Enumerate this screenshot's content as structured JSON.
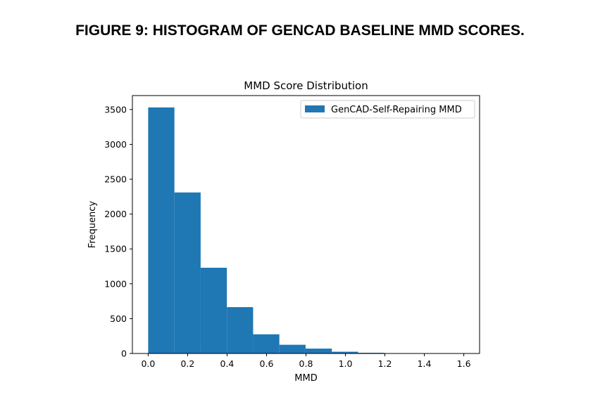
{
  "figure_caption": "FIGURE 9: HISTOGRAM OF GENCAD BASELINE MMD SCORES.",
  "chart_data": {
    "type": "bar",
    "title": "MMD Score Distribution",
    "xlabel": "MMD",
    "ylabel": "Frequency",
    "xlim": [
      -0.08,
      1.68
    ],
    "ylim": [
      0,
      3700
    ],
    "xticks": [
      0.0,
      0.2,
      0.4,
      0.6,
      0.8,
      1.0,
      1.2,
      1.4,
      1.6
    ],
    "xtick_labels": [
      "0.0",
      "0.2",
      "0.4",
      "0.6",
      "0.8",
      "1.0",
      "1.2",
      "1.4",
      "1.6"
    ],
    "yticks": [
      0,
      500,
      1000,
      1500,
      2000,
      2500,
      3000,
      3500
    ],
    "ytick_labels": [
      "0",
      "500",
      "1000",
      "1500",
      "2000",
      "2500",
      "3000",
      "3500"
    ],
    "bin_edges": [
      0.0,
      0.133,
      0.266,
      0.399,
      0.532,
      0.665,
      0.798,
      0.931,
      1.064,
      1.197,
      1.33,
      1.463,
      1.596
    ],
    "series": [
      {
        "name": "GenCAD-Self-Repairing MMD",
        "values": [
          3530,
          2310,
          1230,
          665,
          275,
          125,
          70,
          25,
          10,
          5,
          3,
          2
        ]
      }
    ],
    "legend_position": "top-right",
    "bar_color": "#1f77b4",
    "grid": false
  }
}
